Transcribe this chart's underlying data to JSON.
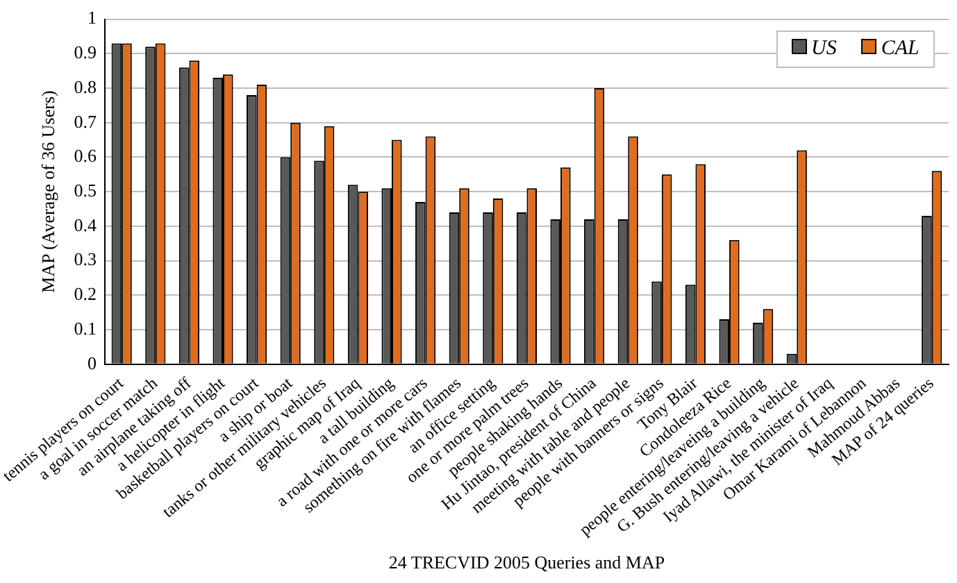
{
  "chart_data": {
    "type": "bar",
    "xlabel": "24 TRECVID 2005 Queries and MAP",
    "ylabel": "MAP (Average of 36 Users)",
    "categories": [
      "tennis players on court",
      "a goal in soccer match",
      "an airplane taking off",
      "a helicopter in flight",
      "basketball players on court",
      "a ship or boat",
      "tanks or other military vehicles",
      "graphic map of Iraq",
      "a tall building",
      "a road with one or more cars",
      "something on fire with flames",
      "an office setting",
      "one or more palm trees",
      "people shaking hands",
      "Hu Jintao, president of China",
      "meeting with table and people",
      "people with banners or signs",
      "Tony Blair",
      "Condoleeza Rice",
      "people entering/leaveing a building",
      "G. Bush entering/leaving a vehicle",
      "Iyad Allawi, the minister of Iraq",
      "Omar Karami of Lebannon",
      "Mahmoud Abbas",
      "MAP of 24 queries"
    ],
    "series": [
      {
        "name": "US",
        "color": "#595959",
        "values": [
          0.93,
          0.92,
          0.86,
          0.83,
          0.78,
          0.6,
          0.59,
          0.52,
          0.51,
          0.47,
          0.44,
          0.44,
          0.44,
          0.42,
          0.42,
          0.42,
          0.24,
          0.23,
          0.13,
          0.12,
          0.03,
          0,
          0,
          0,
          0.43
        ]
      },
      {
        "name": "CAL",
        "color": "#e06c1f",
        "values": [
          0.93,
          0.93,
          0.88,
          0.84,
          0.81,
          0.7,
          0.69,
          0.5,
          0.65,
          0.66,
          0.51,
          0.48,
          0.51,
          0.57,
          0.8,
          0.66,
          0.55,
          0.58,
          0.36,
          0.16,
          0.62,
          0,
          0,
          0,
          0.56
        ]
      }
    ],
    "ylim": [
      0,
      1
    ],
    "yticks": [
      0,
      0.1,
      0.2,
      0.3,
      0.4,
      0.5,
      0.6,
      0.7,
      0.8,
      0.9,
      1
    ],
    "grid": "y",
    "legend": "top right"
  }
}
